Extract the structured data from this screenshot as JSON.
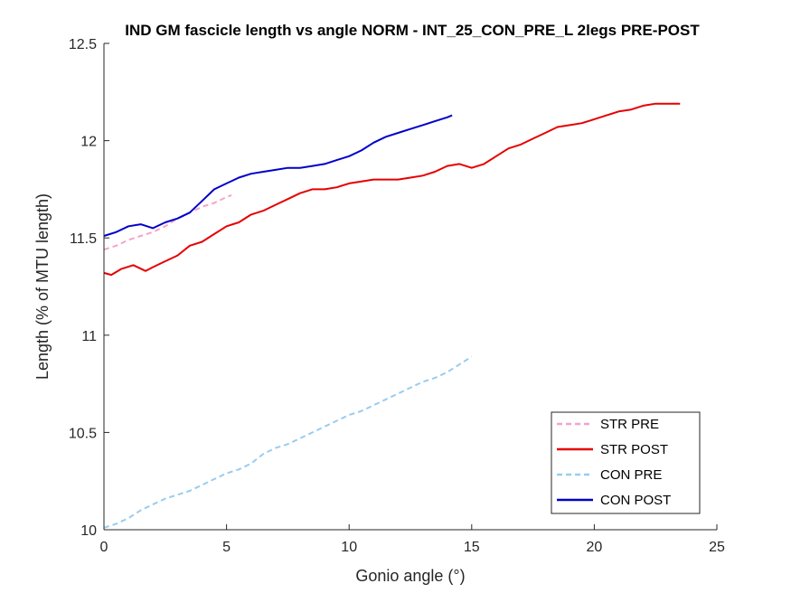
{
  "chart_data": {
    "type": "line",
    "title": "IND GM fascicle length vs angle NORM - INT_25_CON_PRE_L 2legs PRE-POST",
    "xlabel": "Gonio angle (°)",
    "ylabel": "Length (% of MTU length)",
    "xlim": [
      0,
      25
    ],
    "ylim": [
      10,
      12.5
    ],
    "xticks": [
      "0",
      "5",
      "10",
      "15",
      "20",
      "25"
    ],
    "yticks": [
      "10",
      "10.5",
      "11",
      "11.5",
      "12",
      "12.5"
    ],
    "grid": false,
    "legend_position": "bottom-right",
    "series": [
      {
        "name": "STR PRE",
        "color": "#f4a3c9",
        "style": "dashed",
        "x": [
          0,
          0.5,
          1,
          1.5,
          2,
          2.5,
          3,
          3.5,
          4,
          4.5,
          5,
          5.2
        ],
        "y": [
          11.44,
          11.46,
          11.49,
          11.51,
          11.53,
          11.56,
          11.6,
          11.63,
          11.66,
          11.68,
          11.71,
          11.72
        ]
      },
      {
        "name": "STR POST",
        "color": "#e60000",
        "style": "solid",
        "x": [
          0,
          0.3,
          0.7,
          1.2,
          1.7,
          2,
          2.5,
          3,
          3.5,
          4,
          4.5,
          5,
          5.5,
          6,
          6.5,
          7,
          7.5,
          8,
          8.5,
          9,
          9.5,
          10,
          10.5,
          11,
          11.5,
          12,
          12.5,
          13,
          13.5,
          14,
          14.5,
          15,
          15.5,
          16,
          16.5,
          17,
          17.5,
          18,
          18.5,
          19,
          19.5,
          20,
          20.5,
          21,
          21.5,
          22,
          22.5,
          23,
          23.5
        ],
        "y": [
          11.32,
          11.31,
          11.34,
          11.36,
          11.33,
          11.35,
          11.38,
          11.41,
          11.46,
          11.48,
          11.52,
          11.56,
          11.58,
          11.62,
          11.64,
          11.67,
          11.7,
          11.73,
          11.75,
          11.75,
          11.76,
          11.78,
          11.79,
          11.8,
          11.8,
          11.8,
          11.81,
          11.82,
          11.84,
          11.87,
          11.88,
          11.86,
          11.88,
          11.92,
          11.96,
          11.98,
          12.01,
          12.04,
          12.07,
          12.08,
          12.09,
          12.11,
          12.13,
          12.15,
          12.16,
          12.18,
          12.19,
          12.19,
          12.19
        ]
      },
      {
        "name": "CON PRE",
        "color": "#99ccf0",
        "style": "dashed",
        "x": [
          0,
          0.5,
          1,
          1.5,
          2,
          2.5,
          3,
          3.5,
          4,
          4.5,
          5,
          5.5,
          6,
          6.5,
          7,
          7.5,
          8,
          8.5,
          9,
          9.5,
          10,
          10.5,
          11,
          11.5,
          12,
          12.5,
          13,
          13.5,
          14,
          14.5,
          15
        ],
        "y": [
          10.01,
          10.03,
          10.06,
          10.1,
          10.13,
          10.16,
          10.18,
          10.2,
          10.23,
          10.26,
          10.29,
          10.31,
          10.34,
          10.39,
          10.42,
          10.44,
          10.47,
          10.5,
          10.53,
          10.56,
          10.59,
          10.61,
          10.64,
          10.67,
          10.7,
          10.73,
          10.76,
          10.78,
          10.81,
          10.85,
          10.89
        ]
      },
      {
        "name": "CON POST",
        "color": "#0000cc",
        "style": "solid",
        "x": [
          0,
          0.5,
          1,
          1.5,
          2,
          2.5,
          3,
          3.5,
          4,
          4.5,
          5,
          5.5,
          6,
          6.5,
          7,
          7.5,
          8,
          8.5,
          9,
          9.5,
          10,
          10.5,
          11,
          11.5,
          12,
          12.5,
          13,
          13.5,
          14,
          14.2
        ],
        "y": [
          11.51,
          11.53,
          11.56,
          11.57,
          11.55,
          11.58,
          11.6,
          11.63,
          11.69,
          11.75,
          11.78,
          11.81,
          11.83,
          11.84,
          11.85,
          11.86,
          11.86,
          11.87,
          11.88,
          11.9,
          11.92,
          11.95,
          11.99,
          12.02,
          12.04,
          12.06,
          12.08,
          12.1,
          12.12,
          12.13
        ]
      }
    ]
  }
}
